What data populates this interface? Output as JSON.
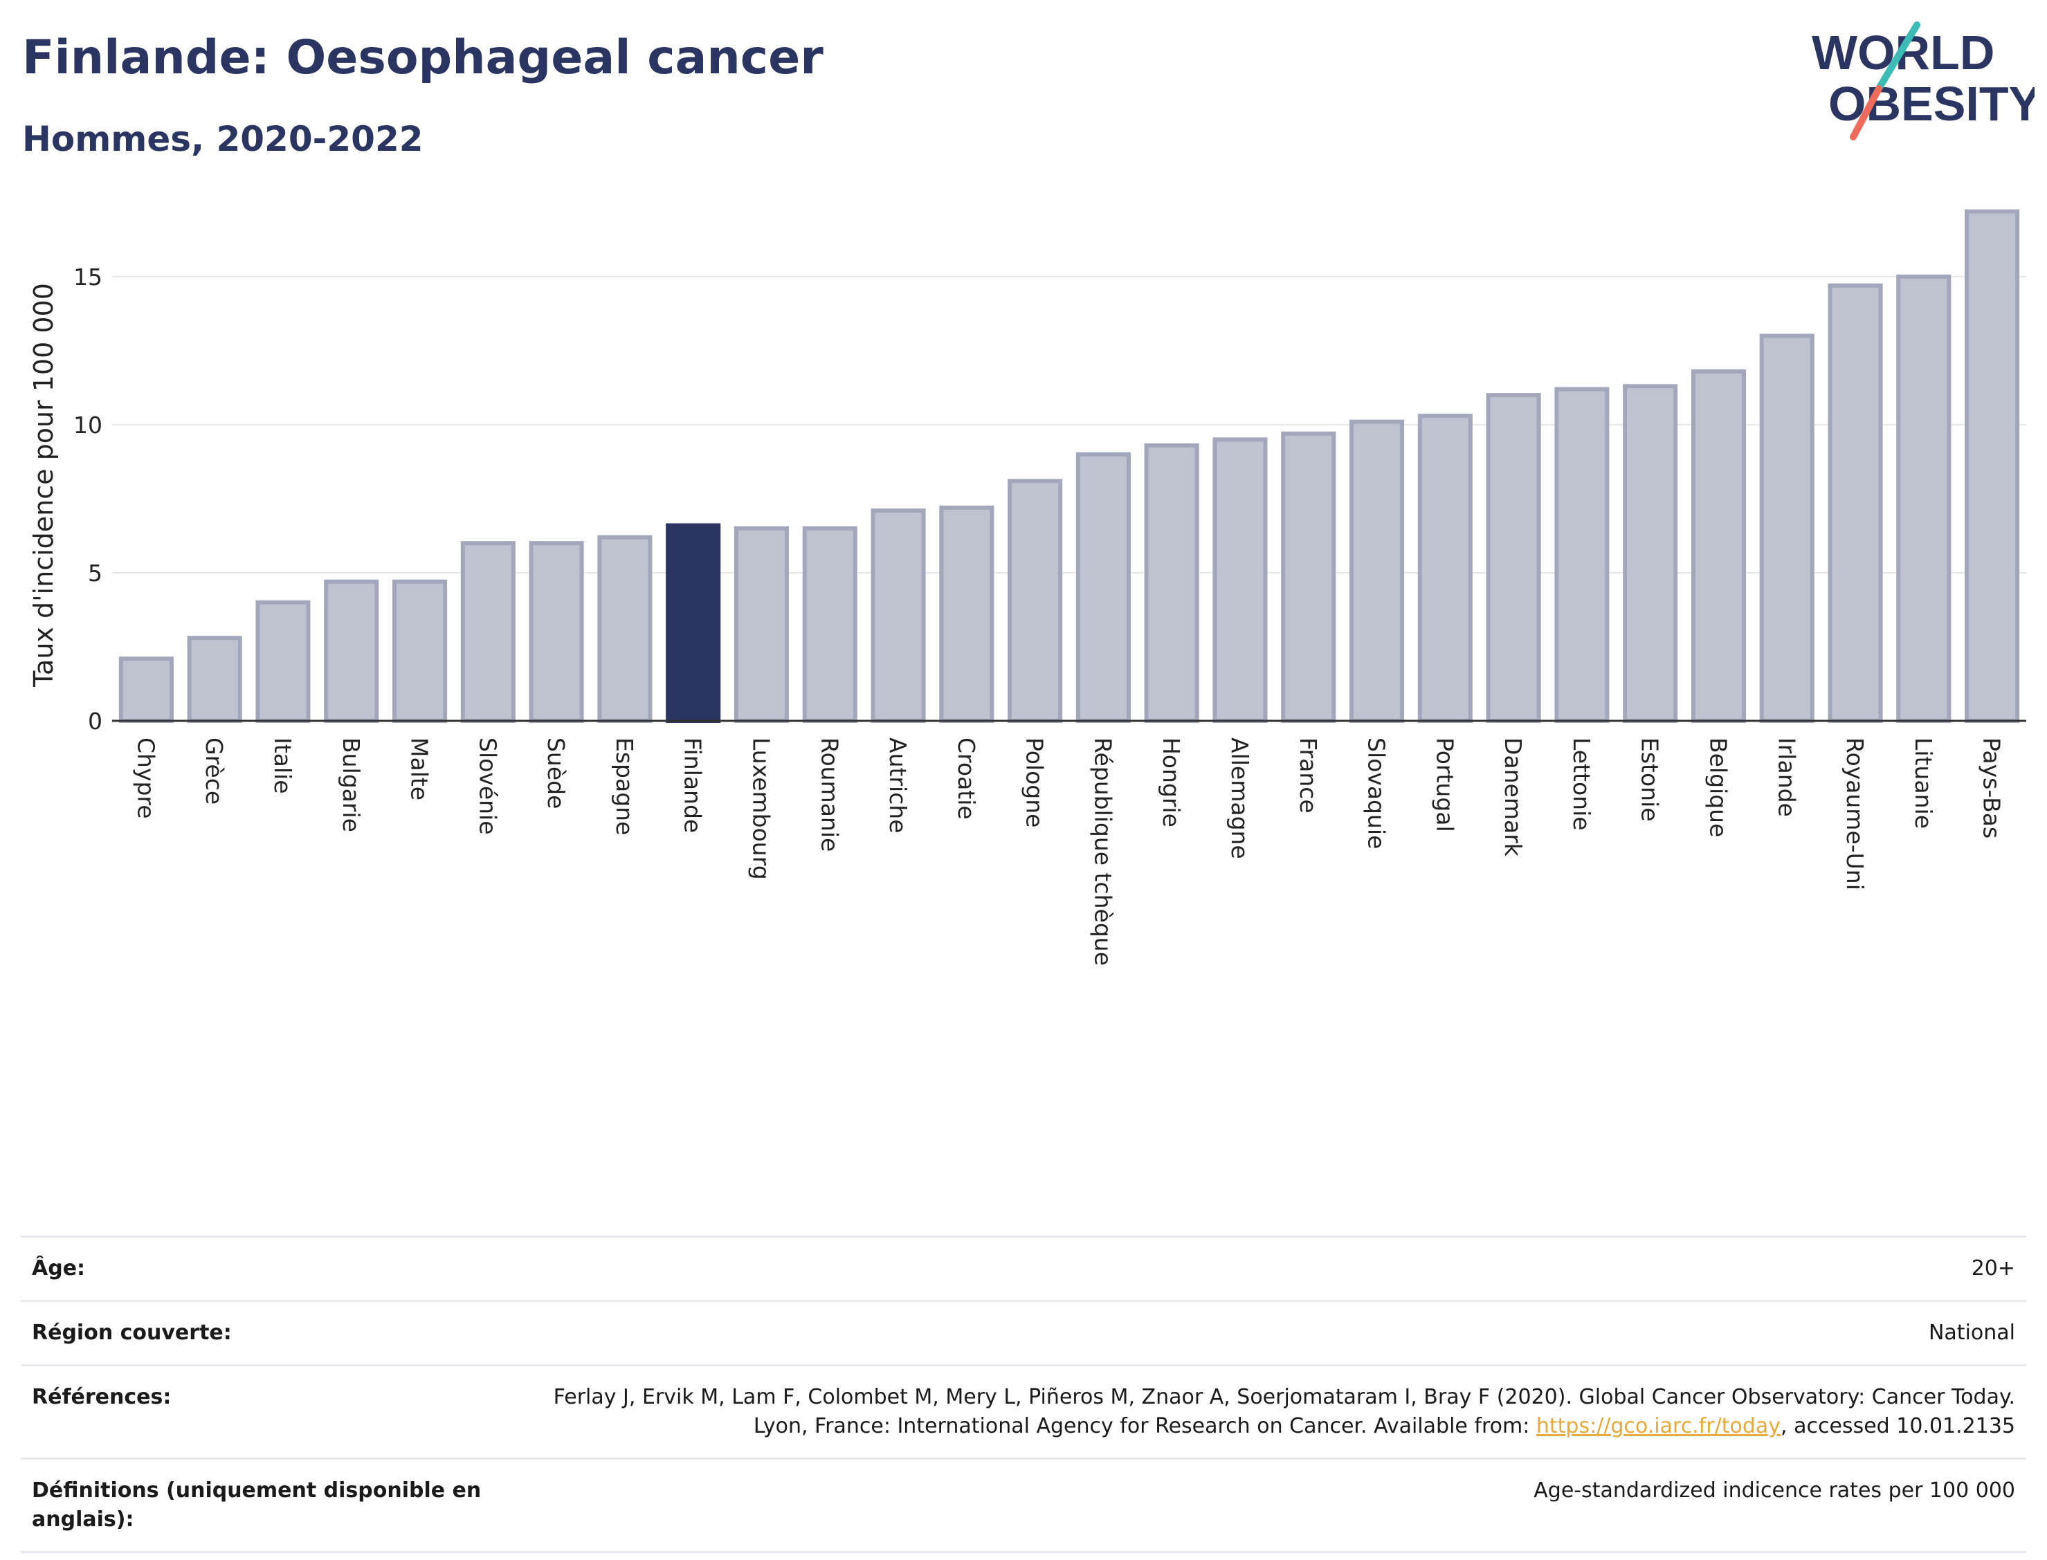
{
  "title": "Finlande: Oesophageal cancer",
  "subtitle": "Hommes, 2020-2022",
  "logo": {
    "line1": "WORLD",
    "line2": "OBESITY"
  },
  "colors": {
    "highlight_bar": "#2b3561",
    "other_bar": "#bfc3d0",
    "other_bar_border": "#a2a7bc",
    "title": "#2b3561",
    "logo_slash_teal": "#3cbcb4",
    "logo_slash_coral": "#ee6b5b",
    "link": "#e7a93a"
  },
  "chart_data": {
    "type": "bar",
    "ylabel": "Taux d'incidence pour 100 000",
    "xlabel": "",
    "ylim": [
      0,
      17.8
    ],
    "yticks": [
      0,
      5,
      10,
      15
    ],
    "highlight": "Finlande",
    "grid": true,
    "categories": [
      "Chypre",
      "Grèce",
      "Italie",
      "Bulgarie",
      "Malte",
      "Slovénie",
      "Suède",
      "Espagne",
      "Finlande",
      "Luxembourg",
      "Roumanie",
      "Autriche",
      "Croatie",
      "Pologne",
      "République tchèque",
      "Hongrie",
      "Allemagne",
      "France",
      "Slovaquie",
      "Portugal",
      "Danemark",
      "Lettonie",
      "Estonie",
      "Belgique",
      "Irlande",
      "Royaume-Uni",
      "Lituanie",
      "Pays-Bas"
    ],
    "values": [
      2.1,
      2.8,
      4.0,
      4.7,
      4.7,
      6.0,
      6.0,
      6.2,
      6.6,
      6.5,
      6.5,
      7.1,
      7.2,
      8.1,
      9.0,
      9.3,
      9.5,
      9.7,
      10.1,
      10.3,
      11.0,
      11.2,
      11.3,
      11.8,
      13.0,
      14.7,
      15.0,
      17.2
    ]
  },
  "info": {
    "age_label": "Âge:",
    "age_value": "20+",
    "region_label": "Région couverte:",
    "region_value": "National",
    "refs_label": "Références:",
    "refs_text_before": "Ferlay J, Ervik M, Lam F, Colombet M, Mery L, Piñeros M, Znaor A, Soerjomataram I, Bray F (2020). Global Cancer Observatory: Cancer Today. Lyon, France: International Agency for Research on Cancer. Available from: ",
    "refs_link": "https://gco.iarc.fr/today",
    "refs_text_after": ", accessed 10.01.2135",
    "defs_label": "Définitions (uniquement disponible en anglais):",
    "defs_value": "Age-standardized indicence rates per 100 000"
  }
}
